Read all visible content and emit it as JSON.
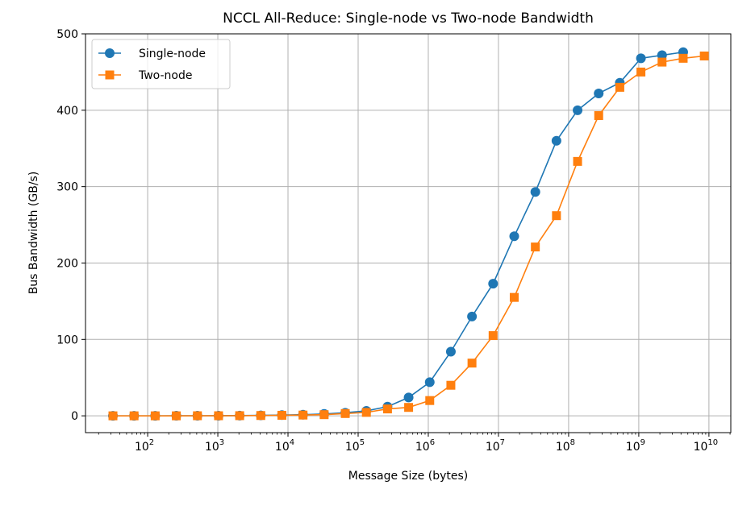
{
  "chart_data": {
    "type": "line",
    "title": "NCCL All-Reduce: Single-node vs Two-node Bandwidth",
    "xlabel": "Message Size (bytes)",
    "ylabel": "Bus Bandwidth (GB/s)",
    "xscale": "log",
    "xlim": [
      13,
      20500000000.0
    ],
    "ylim": [
      -22,
      500
    ],
    "xticks": [
      {
        "exp": "2",
        "value": 100.0
      },
      {
        "exp": "3",
        "value": 1000.0
      },
      {
        "exp": "4",
        "value": 10000.0
      },
      {
        "exp": "5",
        "value": 100000.0
      },
      {
        "exp": "6",
        "value": 1000000.0
      },
      {
        "exp": "7",
        "value": 10000000.0
      },
      {
        "exp": "8",
        "value": 100000000.0
      },
      {
        "exp": "9",
        "value": 1000000000.0
      },
      {
        "exp": "10",
        "value": 10000000000.0
      }
    ],
    "xtick_base": "10",
    "yticks": [
      "0",
      "100",
      "200",
      "300",
      "400",
      "500"
    ],
    "grid": true,
    "legend_position": "top-left",
    "series": [
      {
        "name": "Single-node",
        "color": "#1f77b4",
        "marker": "circle",
        "x": [
          32,
          64,
          128,
          256,
          512,
          1024,
          2048,
          4096,
          8192,
          16384,
          32768,
          65536,
          131072,
          262144,
          524288,
          1048576,
          2097152,
          4194304,
          8388608,
          16777216,
          33554432,
          67108864,
          134217728,
          268435456,
          536870912,
          1073741824,
          2147483648,
          4294967296
        ],
        "y": [
          0.0,
          0.0,
          0.0,
          0.1,
          0.1,
          0.2,
          0.3,
          0.6,
          1.0,
          1.5,
          2.5,
          4,
          6.5,
          12,
          24,
          44,
          84,
          130,
          173,
          235,
          293,
          360,
          400,
          422,
          436,
          468,
          472,
          476
        ]
      },
      {
        "name": "Two-node",
        "color": "#ff7f0e",
        "marker": "square",
        "x": [
          32,
          64,
          128,
          256,
          512,
          1024,
          2048,
          4096,
          8192,
          16384,
          32768,
          65536,
          131072,
          262144,
          524288,
          1048576,
          2097152,
          4194304,
          8388608,
          16777216,
          33554432,
          67108864,
          134217728,
          268435456,
          536870912,
          1073741824,
          2147483648,
          4294967296,
          8589934592
        ],
        "y": [
          0.0,
          0.0,
          0.0,
          0.0,
          0.1,
          0.1,
          0.2,
          0.4,
          0.7,
          1.0,
          1.5,
          3,
          4.5,
          9,
          11,
          20,
          40,
          69,
          105,
          155,
          221,
          262,
          333,
          393,
          430,
          450,
          463,
          468,
          471
        ]
      }
    ]
  }
}
